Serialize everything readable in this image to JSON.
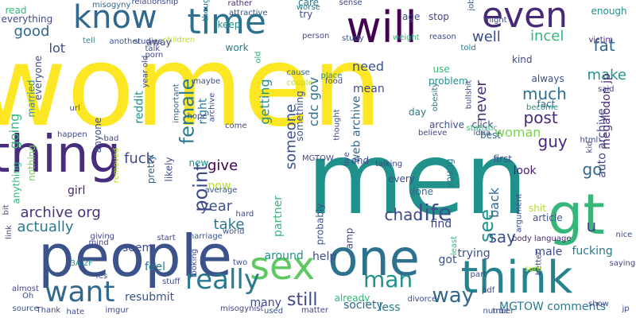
{
  "words": [
    {
      "text": "women",
      "color": "#fde725"
    },
    {
      "text": "men",
      "color": "#21918c"
    },
    {
      "text": "people",
      "color": "#3b528b"
    },
    {
      "text": "gt",
      "color": "#35b779"
    },
    {
      "text": "think",
      "color": "#26828e"
    },
    {
      "text": "one",
      "color": "#2c728e"
    },
    {
      "text": "thing",
      "color": "#472d7b"
    },
    {
      "text": "will",
      "color": "#440154"
    },
    {
      "text": "time",
      "color": "#2c728e"
    },
    {
      "text": "know",
      "color": "#31688e"
    },
    {
      "text": "even",
      "color": "#482878"
    },
    {
      "text": "sex",
      "color": "#5ec962"
    },
    {
      "text": "really",
      "color": "#2a788e"
    },
    {
      "text": "want",
      "color": "#31688e"
    },
    {
      "text": "archive org",
      "color": "#46327e"
    },
    {
      "text": "man",
      "color": "#21918c"
    },
    {
      "text": "life",
      "color": "#3b528b"
    },
    {
      "text": "way",
      "color": "#31688e"
    },
    {
      "text": "see",
      "color": "#21918c"
    },
    {
      "text": "chad",
      "color": "#3e4989"
    },
    {
      "text": "say",
      "color": "#3b528b"
    },
    {
      "text": "guy",
      "color": "#482878"
    },
    {
      "text": "make",
      "color": "#21918c"
    },
    {
      "text": "fat",
      "color": "#31688e"
    },
    {
      "text": "incel",
      "color": "#35b779"
    },
    {
      "text": "well",
      "color": "#3e4989"
    },
    {
      "text": "good",
      "color": "#31688e"
    },
    {
      "text": "much",
      "color": "#2c728e"
    },
    {
      "text": "post",
      "color": "#482878"
    },
    {
      "text": "woman",
      "color": "#7ad151"
    },
    {
      "text": "female",
      "color": "#2a788e"
    },
    {
      "text": "point",
      "color": "#3e4989"
    },
    {
      "text": "give",
      "color": "#440154"
    },
    {
      "text": "year",
      "color": "#3b528b"
    },
    {
      "text": "now",
      "color": "#b5de2b"
    },
    {
      "text": "take",
      "color": "#2a788e"
    },
    {
      "text": "fuck",
      "color": "#3e4989"
    },
    {
      "text": "go",
      "color": "#31688e"
    },
    {
      "text": "u",
      "color": "#414487"
    },
    {
      "text": "look",
      "color": "#481f70"
    },
    {
      "text": "back",
      "color": "#31688e"
    },
    {
      "text": "still",
      "color": "#3e4989"
    },
    {
      "text": "actually",
      "color": "#2a788e"
    },
    {
      "text": "going",
      "color": "#35b779"
    },
    {
      "text": "lot",
      "color": "#3e4989"
    },
    {
      "text": "never",
      "color": "#472d7b"
    },
    {
      "text": "someone",
      "color": "#3b528b"
    },
    {
      "text": "getting",
      "color": "#21918c"
    },
    {
      "text": "need",
      "color": "#3b528b"
    },
    {
      "text": "mean",
      "color": "#3e4989"
    },
    {
      "text": "cdc gov",
      "color": "#2c728e"
    },
    {
      "text": "web archive",
      "color": "#31688e"
    },
    {
      "text": "megalodon jp",
      "color": "#482878"
    },
    {
      "text": "auto archive",
      "color": "#414487"
    },
    {
      "text": "reddit",
      "color": "#21918c"
    },
    {
      "text": "right",
      "color": "#2a788e"
    },
    {
      "text": "partner",
      "color": "#35b779"
    },
    {
      "text": "around",
      "color": "#21918c"
    },
    {
      "text": "seem",
      "color": "#3e4989"
    },
    {
      "text": "feel",
      "color": "#2a788e"
    },
    {
      "text": "girl",
      "color": "#481f70"
    },
    {
      "text": "resubmit",
      "color": "#3b528b"
    },
    {
      "text": "many",
      "color": "#3e4989"
    },
    {
      "text": "MGTOW comments",
      "color": "#2a788e"
    },
    {
      "text": "trying",
      "color": "#3b528b"
    },
    {
      "text": "male",
      "color": "#3e4989"
    },
    {
      "text": "fucking",
      "color": "#2a788e"
    },
    {
      "text": "less",
      "color": "#2a788e"
    },
    {
      "text": "society",
      "color": "#31688e"
    },
    {
      "text": "help",
      "color": "#3e4989"
    },
    {
      "text": "got",
      "color": "#3b528b"
    },
    {
      "text": "find",
      "color": "#3e4989"
    },
    {
      "text": "done",
      "color": "#31688e"
    },
    {
      "text": "young",
      "color": "#2a788e"
    },
    {
      "text": "every",
      "color": "#3e4989"
    },
    {
      "text": "article",
      "color": "#3b528b"
    },
    {
      "text": "shit",
      "color": "#b5de2b"
    },
    {
      "text": "first",
      "color": "#3b528b"
    },
    {
      "text": "best",
      "color": "#31688e"
    },
    {
      "text": "click",
      "color": "#3e4989"
    },
    {
      "text": "archive",
      "color": "#3b528b"
    },
    {
      "text": "problem",
      "color": "#21918c"
    },
    {
      "text": "use",
      "color": "#35b779"
    },
    {
      "text": "day",
      "color": "#2a788e"
    },
    {
      "text": "always",
      "color": "#3b528b"
    },
    {
      "text": "kind",
      "color": "#3e4989"
    },
    {
      "text": "fact",
      "color": "#31688e"
    },
    {
      "text": "married",
      "color": "#21918c"
    },
    {
      "text": "everyone",
      "color": "#3e4989"
    },
    {
      "text": "anything",
      "color": "#35b779"
    },
    {
      "text": "nothing",
      "color": "#6ece58"
    },
    {
      "text": "anyone",
      "color": "#3e4989"
    },
    {
      "text": "pretty",
      "color": "#31688e"
    },
    {
      "text": "likely",
      "color": "#3b528b"
    },
    {
      "text": "new",
      "color": "#21918c"
    },
    {
      "text": "away",
      "color": "#3e4989"
    },
    {
      "text": "work",
      "color": "#2a788e"
    },
    {
      "text": "keep",
      "color": "#21918c"
    },
    {
      "text": "try",
      "color": "#3b528b"
    },
    {
      "text": "age",
      "color": "#3e4989"
    },
    {
      "text": "stop",
      "color": "#3e4989"
    },
    {
      "text": "care",
      "color": "#2a788e"
    },
    {
      "text": "enough",
      "color": "#21918c"
    },
    {
      "text": "read",
      "color": "#35b779"
    },
    {
      "text": "everything",
      "color": "#3e4989"
    },
    {
      "text": "misogyny",
      "color": "#31688e"
    },
    {
      "text": "relationship",
      "color": "#3e4989"
    },
    {
      "text": "attractive",
      "color": "#3b528b"
    },
    {
      "text": "though",
      "color": "#2a788e"
    },
    {
      "text": "rather",
      "color": "#482878"
    },
    {
      "text": "sense",
      "color": "#3e4989"
    },
    {
      "text": "job",
      "color": "#3b528b"
    },
    {
      "text": "might",
      "color": "#3e4989"
    },
    {
      "text": "worse",
      "color": "#2a788e"
    },
    {
      "text": "reason",
      "color": "#3e4989"
    },
    {
      "text": "weight",
      "color": "#35b779"
    },
    {
      "text": "study",
      "color": "#3b528b"
    },
    {
      "text": "person",
      "color": "#3e4989"
    },
    {
      "text": "children",
      "color": "#b5de2b"
    },
    {
      "text": "studies",
      "color": "#3e4989"
    },
    {
      "text": "another",
      "color": "#3b528b"
    },
    {
      "text": "tell",
      "color": "#21918c"
    },
    {
      "text": "talk",
      "color": "#3e4989"
    },
    {
      "text": "porn",
      "color": "#3e4989"
    },
    {
      "text": "victim",
      "color": "#482878"
    },
    {
      "text": "told",
      "color": "#2a788e"
    },
    {
      "text": "old",
      "color": "#35b779"
    },
    {
      "text": "year old",
      "color": "#3e4989"
    },
    {
      "text": "cause",
      "color": "#31688e"
    },
    {
      "text": "place",
      "color": "#21918c"
    },
    {
      "text": "food",
      "color": "#3b528b"
    },
    {
      "text": "couple",
      "color": "#b5de2b"
    },
    {
      "text": "obesity",
      "color": "#2a788e"
    },
    {
      "text": "bullshit",
      "color": "#3e4989"
    },
    {
      "text": "said",
      "color": "#3e4989"
    },
    {
      "text": "become",
      "color": "#21918c"
    },
    {
      "text": "maybe",
      "color": "#3b528b"
    },
    {
      "text": "important",
      "color": "#31688e"
    },
    {
      "text": "archive",
      "color": "#3e4989"
    },
    {
      "text": "url",
      "color": "#3e4989"
    },
    {
      "text": "hope",
      "color": "#3b528b"
    },
    {
      "text": "thought",
      "color": "#3e4989"
    },
    {
      "text": "statistic",
      "color": "#35b779"
    },
    {
      "text": "idea",
      "color": "#3b528b"
    },
    {
      "text": "happen",
      "color": "#3e4989"
    },
    {
      "text": "bad",
      "color": "#3e4989"
    },
    {
      "text": "believe",
      "color": "#3e4989"
    },
    {
      "text": "html",
      "color": "#3e4989"
    },
    {
      "text": "kid",
      "color": "#3e4989"
    },
    {
      "text": "removed",
      "color": "#b5de2b"
    },
    {
      "text": "bit",
      "color": "#3e4989"
    },
    {
      "text": "average",
      "color": "#3b528b"
    },
    {
      "text": "talking",
      "color": "#3e4989"
    },
    {
      "text": "hard",
      "color": "#3e4989"
    },
    {
      "text": "argument",
      "color": "#3e4989"
    },
    {
      "text": "body language",
      "color": "#482878"
    },
    {
      "text": "nice",
      "color": "#3e4989"
    },
    {
      "text": "saying",
      "color": "#3e4989"
    },
    {
      "text": "world",
      "color": "#3b528b"
    },
    {
      "text": "start",
      "color": "#3e4989"
    },
    {
      "text": "giving",
      "color": "#3e4989"
    },
    {
      "text": "mind",
      "color": "#3e4989"
    },
    {
      "text": "link",
      "color": "#3e4989"
    },
    {
      "text": "marriage",
      "color": "#3b528b"
    },
    {
      "text": "least",
      "color": "#35b779"
    },
    {
      "text": "looking",
      "color": "#3e4989"
    },
    {
      "text": "two",
      "color": "#3b528b"
    },
    {
      "text": "3A 2F",
      "color": "#21918c"
    },
    {
      "text": "Yes",
      "color": "#3e4989"
    },
    {
      "text": "better",
      "color": "#3b528b"
    },
    {
      "text": "sure",
      "color": "#b5de2b"
    },
    {
      "text": "part",
      "color": "#3e4989"
    },
    {
      "text": "stuff",
      "color": "#3e4989"
    },
    {
      "text": "almost",
      "color": "#3e4989"
    },
    {
      "text": "Oh",
      "color": "#3e4989"
    },
    {
      "text": "source",
      "color": "#3b528b"
    },
    {
      "text": "Thank",
      "color": "#3e4989"
    },
    {
      "text": "hate",
      "color": "#3e4989"
    },
    {
      "text": "imgur",
      "color": "#3e4989"
    },
    {
      "text": "misogynist",
      "color": "#3e4989"
    },
    {
      "text": "used",
      "color": "#3b528b"
    },
    {
      "text": "matter",
      "color": "#3e4989"
    },
    {
      "text": "divorce",
      "color": "#3e4989"
    },
    {
      "text": "true",
      "color": "#3e4989"
    },
    {
      "text": "number",
      "color": "#3b528b"
    },
    {
      "text": "pdf",
      "color": "#3e4989"
    },
    {
      "text": "show",
      "color": "#3e4989"
    },
    {
      "text": "jp",
      "color": "#3e4989"
    },
    {
      "text": "live",
      "color": "#3e4989"
    },
    {
      "text": "amp",
      "color": "#3e4989"
    },
    {
      "text": "probably",
      "color": "#3b528b"
    },
    {
      "text": "something",
      "color": "#3b528b"
    },
    {
      "text": "already",
      "color": "#35b779"
    },
    {
      "text": "end",
      "color": "#3e4989"
    },
    {
      "text": "come",
      "color": "#3e4989"
    },
    {
      "text": "MGTOW",
      "color": "#3e4989"
    }
  ]
}
